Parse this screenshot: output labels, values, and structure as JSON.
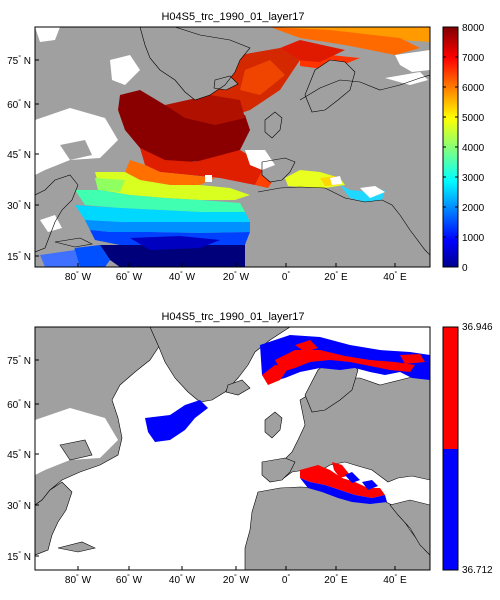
{
  "panels": [
    {
      "title": "H04S5_trc_1990_01_layer17",
      "lon_ticks": [
        {
          "num": "80",
          "dir": "W"
        },
        {
          "num": "60",
          "dir": "W"
        },
        {
          "num": "40",
          "dir": "W"
        },
        {
          "num": "20",
          "dir": "W"
        },
        {
          "num": "0",
          "dir": ""
        },
        {
          "num": "20",
          "dir": "E"
        },
        {
          "num": "40",
          "dir": "E"
        }
      ],
      "lat_ticks": [
        {
          "num": "75",
          "dir": "N"
        },
        {
          "num": "60",
          "dir": "N"
        },
        {
          "num": "45",
          "dir": "N"
        },
        {
          "num": "30",
          "dir": "N"
        },
        {
          "num": "15",
          "dir": "N"
        }
      ],
      "colorbar": {
        "type": "continuous",
        "colormap": "jet",
        "range": [
          0,
          8000
        ],
        "ticks": [
          "8000",
          "7000",
          "6000",
          "5000",
          "4000",
          "3000",
          "2000",
          "1000",
          "0"
        ]
      }
    },
    {
      "title": "H04S5_trc_1990_01_layer17",
      "lon_ticks": [
        {
          "num": "80",
          "dir": "W"
        },
        {
          "num": "60",
          "dir": "W"
        },
        {
          "num": "40",
          "dir": "W"
        },
        {
          "num": "20",
          "dir": "W"
        },
        {
          "num": "0",
          "dir": ""
        },
        {
          "num": "20",
          "dir": "E"
        },
        {
          "num": "40",
          "dir": "E"
        }
      ],
      "lat_ticks": [
        {
          "num": "75",
          "dir": "N"
        },
        {
          "num": "60",
          "dir": "N"
        },
        {
          "num": "45",
          "dir": "N"
        },
        {
          "num": "30",
          "dir": "N"
        },
        {
          "num": "15",
          "dir": "N"
        }
      ],
      "colorbar": {
        "type": "two-class",
        "colors": [
          "#ff0000",
          "#0000ff"
        ],
        "ticks": [
          "36.946",
          "36.712"
        ]
      }
    }
  ],
  "colors": {
    "land": "#a0a0a0",
    "ocean_missing": "#ffffff",
    "high_class": "#ff0000",
    "low_class": "#0000ff"
  }
}
